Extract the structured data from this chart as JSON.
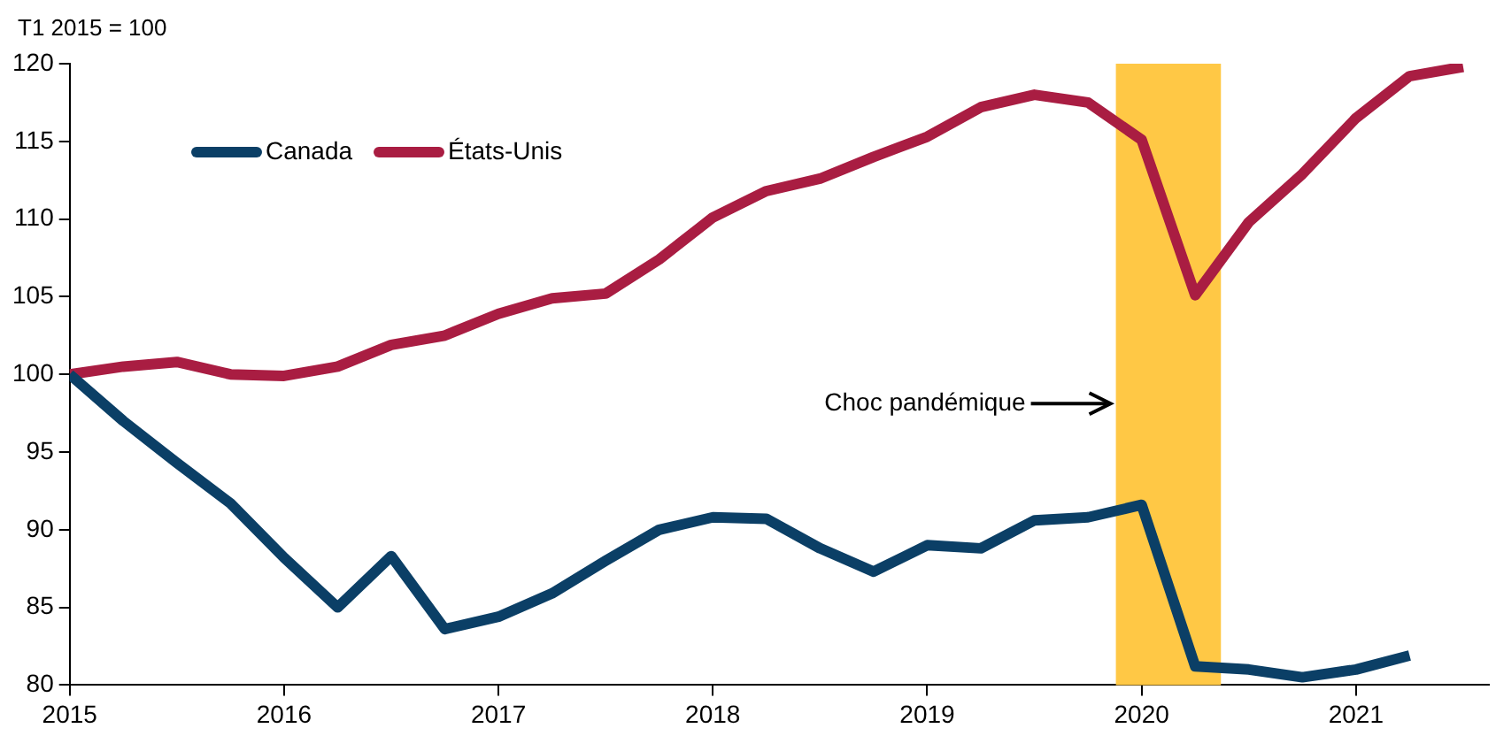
{
  "chart_data": {
    "type": "line",
    "ylabel": "T1 2015 = 100",
    "legend": "top left",
    "marker": "none",
    "grid": false,
    "xlim": [
      2015,
      2021.62
    ],
    "xticks": [
      2015,
      2016,
      2017,
      2018,
      2019,
      2020,
      2021
    ],
    "ylim": [
      80,
      120
    ],
    "yticks": [
      80,
      85,
      90,
      95,
      100,
      105,
      110,
      115,
      120
    ],
    "bands": [
      {
        "axis": "x",
        "from": 2019.88,
        "to": 2020.37,
        "label": "Choc pandémique",
        "color": "#ffc845"
      }
    ],
    "series": [
      {
        "name": "Canada",
        "color": "#0b3f66",
        "x": [
          2015,
          2015.25,
          2015.5,
          2015.75,
          2016,
          2016.25,
          2016.5,
          2016.75,
          2017,
          2017.25,
          2017.5,
          2017.75,
          2018,
          2018.25,
          2018.5,
          2018.75,
          2019,
          2019.25,
          2019.5,
          2019.75,
          2020,
          2020.25,
          2020.5,
          2020.75,
          2021,
          2021.25
        ],
        "values": [
          100,
          97,
          94.3,
          91.7,
          88.2,
          85,
          88.3,
          83.6,
          84.4,
          85.9,
          88,
          90,
          90.8,
          90.7,
          88.8,
          87.3,
          89,
          88.8,
          90.6,
          90.8,
          91.6,
          81.2,
          81,
          80.5,
          81,
          81.9
        ]
      },
      {
        "name": "États-Unis",
        "color": "#a91d42",
        "x": [
          2015,
          2015.25,
          2015.5,
          2015.75,
          2016,
          2016.25,
          2016.5,
          2016.75,
          2017,
          2017.25,
          2017.5,
          2017.75,
          2018,
          2018.25,
          2018.5,
          2018.75,
          2019,
          2019.25,
          2019.5,
          2019.75,
          2020,
          2020.25,
          2020.5,
          2020.75,
          2021,
          2021.25,
          2021.5
        ],
        "values": [
          100,
          100.5,
          100.8,
          100,
          99.9,
          100.5,
          101.9,
          102.5,
          103.9,
          104.9,
          105.2,
          107.4,
          110.1,
          111.8,
          112.6,
          114,
          115.3,
          117.2,
          118,
          117.5,
          115.1,
          105.1,
          109.8,
          112.9,
          116.5,
          119.2,
          119.8
        ]
      }
    ]
  }
}
